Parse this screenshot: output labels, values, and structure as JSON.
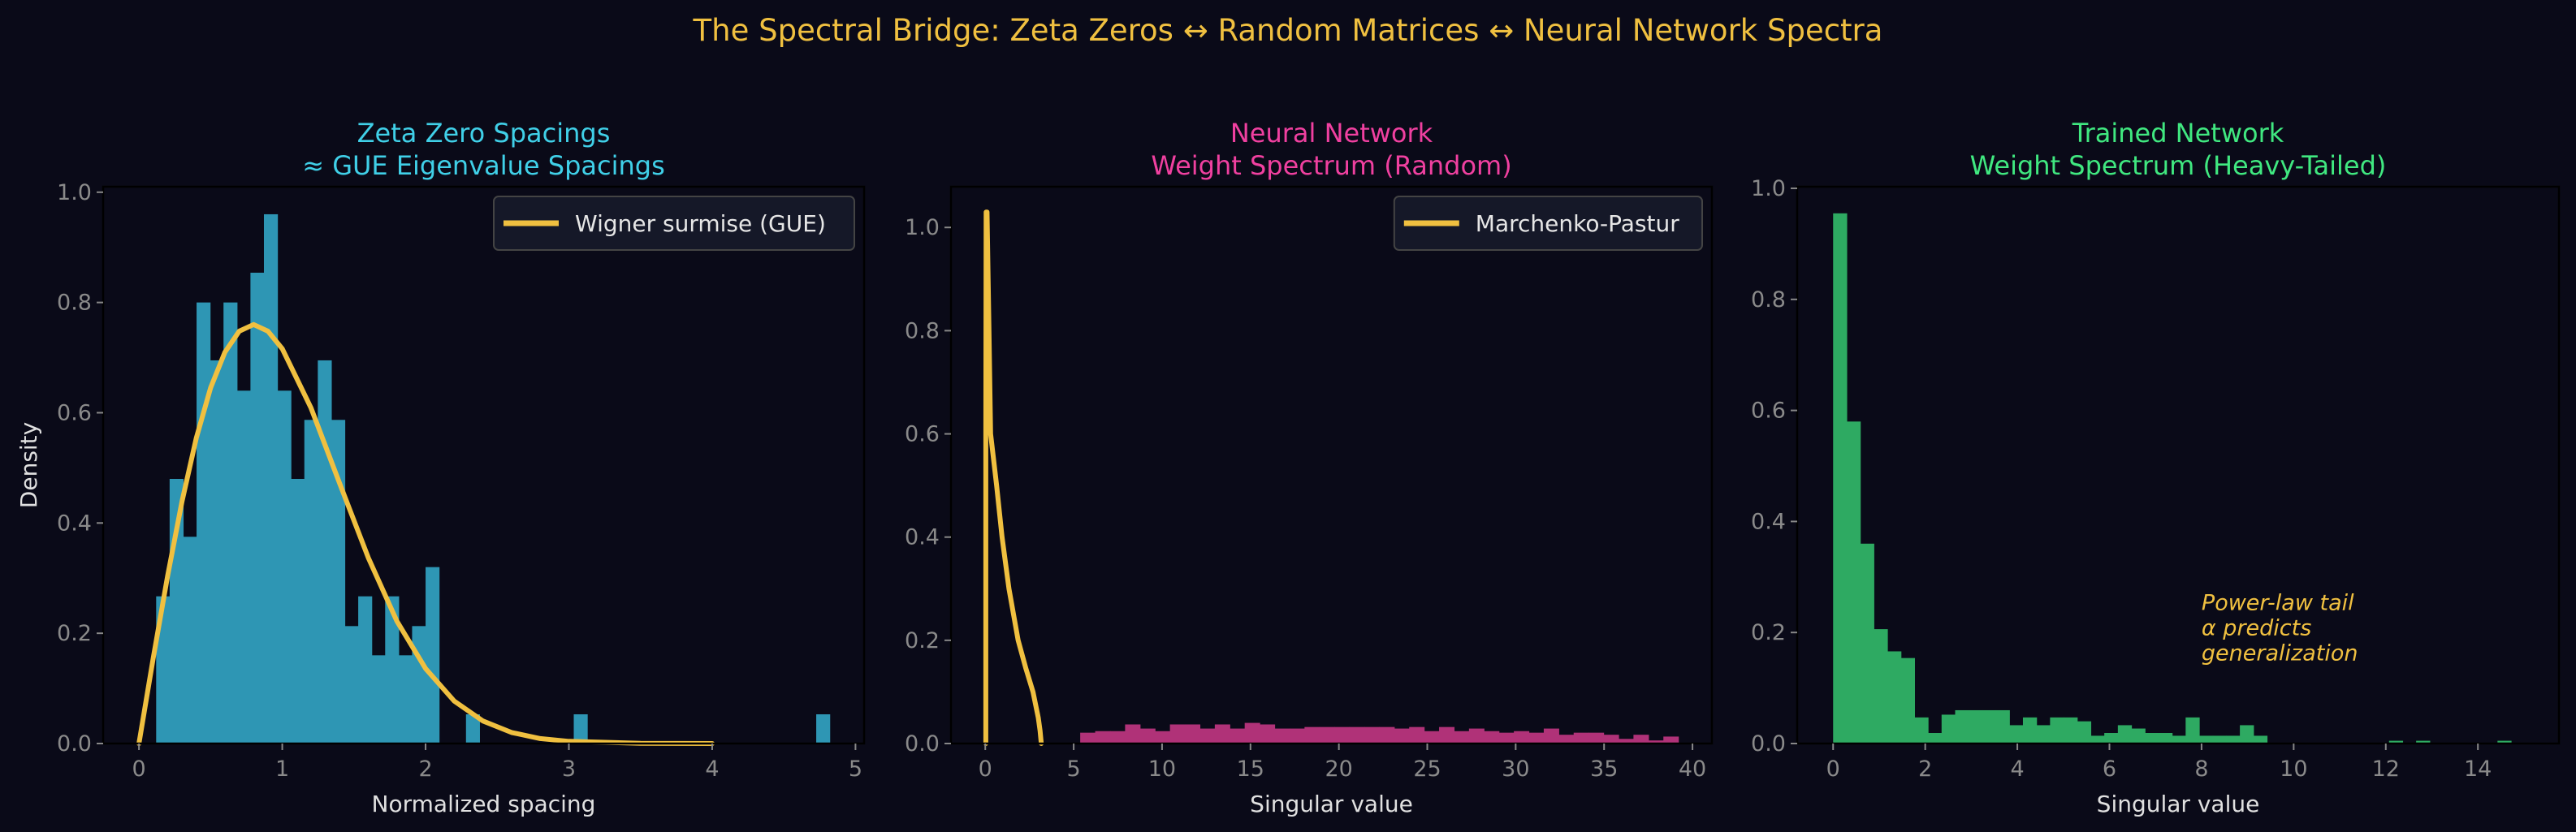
{
  "figure": {
    "title": "The Spectral Bridge: Zeta Zeros ↔ Random Matrices ↔ Neural Network Spectra",
    "background": "#0a0a18",
    "title_color": "#f0c040"
  },
  "chart_data": [
    {
      "type": "bar",
      "subtype": "histogram",
      "title_lines": [
        "Zeta Zero Spacings",
        "≈ GUE Eigenvalue Spacings"
      ],
      "title_color": "#40d0e8",
      "xlabel": "Normalized spacing",
      "ylabel": "Density",
      "xlim": [
        -0.25,
        5.06
      ],
      "ylim": [
        0,
        1.01
      ],
      "xticks": [
        0,
        1,
        2,
        3,
        4,
        5
      ],
      "xtick_labels": [
        "0",
        "1",
        "2",
        "3",
        "4",
        "5"
      ],
      "yticks": [
        0,
        0.2,
        0.4,
        0.6,
        0.8,
        1.0
      ],
      "ytick_labels": [
        "0.0",
        "0.2",
        "0.4",
        "0.6",
        "0.8",
        "1.0"
      ],
      "bar_color": "#2e96b4",
      "bin_range": [
        0.12,
        4.82
      ],
      "values": [
        0.267,
        0.48,
        0.375,
        0.8,
        0.695,
        0.8,
        0.64,
        0.854,
        0.96,
        0.64,
        0.48,
        0.587,
        0.695,
        0.587,
        0.213,
        0.267,
        0.16,
        0.267,
        0.16,
        0.213,
        0.32,
        0,
        0,
        0.053,
        0,
        0,
        0,
        0,
        0,
        0,
        0,
        0.053,
        0,
        0,
        0,
        0,
        0,
        0,
        0,
        0,
        0,
        0,
        0,
        0,
        0,
        0,
        0,
        0,
        0,
        0.053
      ],
      "line": {
        "name": "Wigner surmise (GUE)",
        "color": "#f0c040",
        "x": [
          0,
          0.1,
          0.2,
          0.3,
          0.4,
          0.5,
          0.6,
          0.7,
          0.8,
          0.9,
          1.0,
          1.2,
          1.4,
          1.6,
          1.8,
          2.0,
          2.2,
          2.4,
          2.6,
          2.8,
          3.0,
          3.5,
          4.0
        ],
        "y": [
          0,
          0.156,
          0.304,
          0.439,
          0.554,
          0.645,
          0.71,
          0.748,
          0.76,
          0.748,
          0.716,
          0.609,
          0.472,
          0.337,
          0.222,
          0.136,
          0.077,
          0.041,
          0.02,
          0.009,
          0.004,
          0.0004,
          2e-05
        ]
      },
      "legend": "top-right"
    },
    {
      "type": "bar",
      "subtype": "histogram",
      "title_lines": [
        "Neural Network",
        "Weight Spectrum (Random)"
      ],
      "title_color": "#f040a0",
      "xlabel": "Singular value",
      "ylabel": "",
      "xlim": [
        -1.94,
        41.1
      ],
      "ylim": [
        0,
        1.079
      ],
      "xticks": [
        0,
        5,
        10,
        15,
        20,
        25,
        30,
        35,
        40
      ],
      "xtick_labels": [
        "0",
        "5",
        "10",
        "15",
        "20",
        "25",
        "30",
        "35",
        "40"
      ],
      "yticks": [
        0,
        0.2,
        0.4,
        0.6,
        0.8,
        1.0
      ],
      "ytick_labels": [
        "0.0",
        "0.2",
        "0.4",
        "0.6",
        "0.8",
        "1.0"
      ],
      "bar_color": "#b03278",
      "bin_range": [
        5.37,
        39.2
      ],
      "values": [
        0.021,
        0.024,
        0.024,
        0.037,
        0.029,
        0.024,
        0.037,
        0.037,
        0.029,
        0.037,
        0.029,
        0.04,
        0.037,
        0.029,
        0.029,
        0.032,
        0.032,
        0.032,
        0.032,
        0.032,
        0.032,
        0.029,
        0.032,
        0.024,
        0.032,
        0.024,
        0.029,
        0.024,
        0.021,
        0.024,
        0.021,
        0.029,
        0.017,
        0.021,
        0.021,
        0.017,
        0.009,
        0.017,
        0.006,
        0.0135
      ],
      "line": {
        "name": "Marchenko-Pastur",
        "color": "#f0c040",
        "x": [
          0.03,
          0.03,
          0.05,
          0.1,
          0.21,
          0.3,
          0.64,
          0.95,
          1.34,
          1.86,
          2.3,
          2.7,
          3.0,
          3.1,
          3.17
        ],
        "y": [
          0,
          0.6,
          1.03,
          1.03,
          0.8,
          0.6,
          0.5,
          0.4,
          0.3,
          0.2,
          0.145,
          0.1,
          0.05,
          0.025,
          0
        ]
      },
      "legend": "top-right"
    },
    {
      "type": "bar",
      "subtype": "histogram",
      "title_lines": [
        "Trained Network",
        "Weight Spectrum (Heavy-Tailed)"
      ],
      "title_color": "#40e880",
      "xlabel": "Singular value",
      "ylabel": "",
      "xlim": [
        -0.78,
        15.76
      ],
      "ylim": [
        0,
        1.003
      ],
      "xticks": [
        0,
        2,
        4,
        6,
        8,
        10,
        12,
        14
      ],
      "xtick_labels": [
        "0",
        "2",
        "4",
        "6",
        "8",
        "10",
        "12",
        "14"
      ],
      "yticks": [
        0,
        0.2,
        0.4,
        0.6,
        0.8,
        1.0
      ],
      "ytick_labels": [
        "0.0",
        "0.2",
        "0.4",
        "0.6",
        "0.8",
        "1.0"
      ],
      "bar_color": "#2eaa62",
      "bin_range": [
        0.0,
        14.72
      ],
      "values": [
        0.955,
        0.58,
        0.36,
        0.206,
        0.166,
        0.154,
        0.047,
        0.019,
        0.052,
        0.06,
        0.06,
        0.06,
        0.06,
        0.033,
        0.047,
        0.033,
        0.047,
        0.047,
        0.04,
        0.014,
        0.019,
        0.033,
        0.027,
        0.019,
        0.019,
        0.014,
        0.047,
        0.014,
        0.014,
        0.014,
        0.033,
        0.014,
        0,
        0,
        0,
        0,
        0,
        0,
        0,
        0,
        0,
        0.005,
        0,
        0.005,
        0,
        0,
        0,
        0,
        0,
        0.005
      ],
      "annotation": {
        "lines": [
          "Power-law tail",
          "α predicts",
          "generalization"
        ],
        "x": 8,
        "y": 0.15,
        "color": "#f0c040"
      }
    }
  ]
}
